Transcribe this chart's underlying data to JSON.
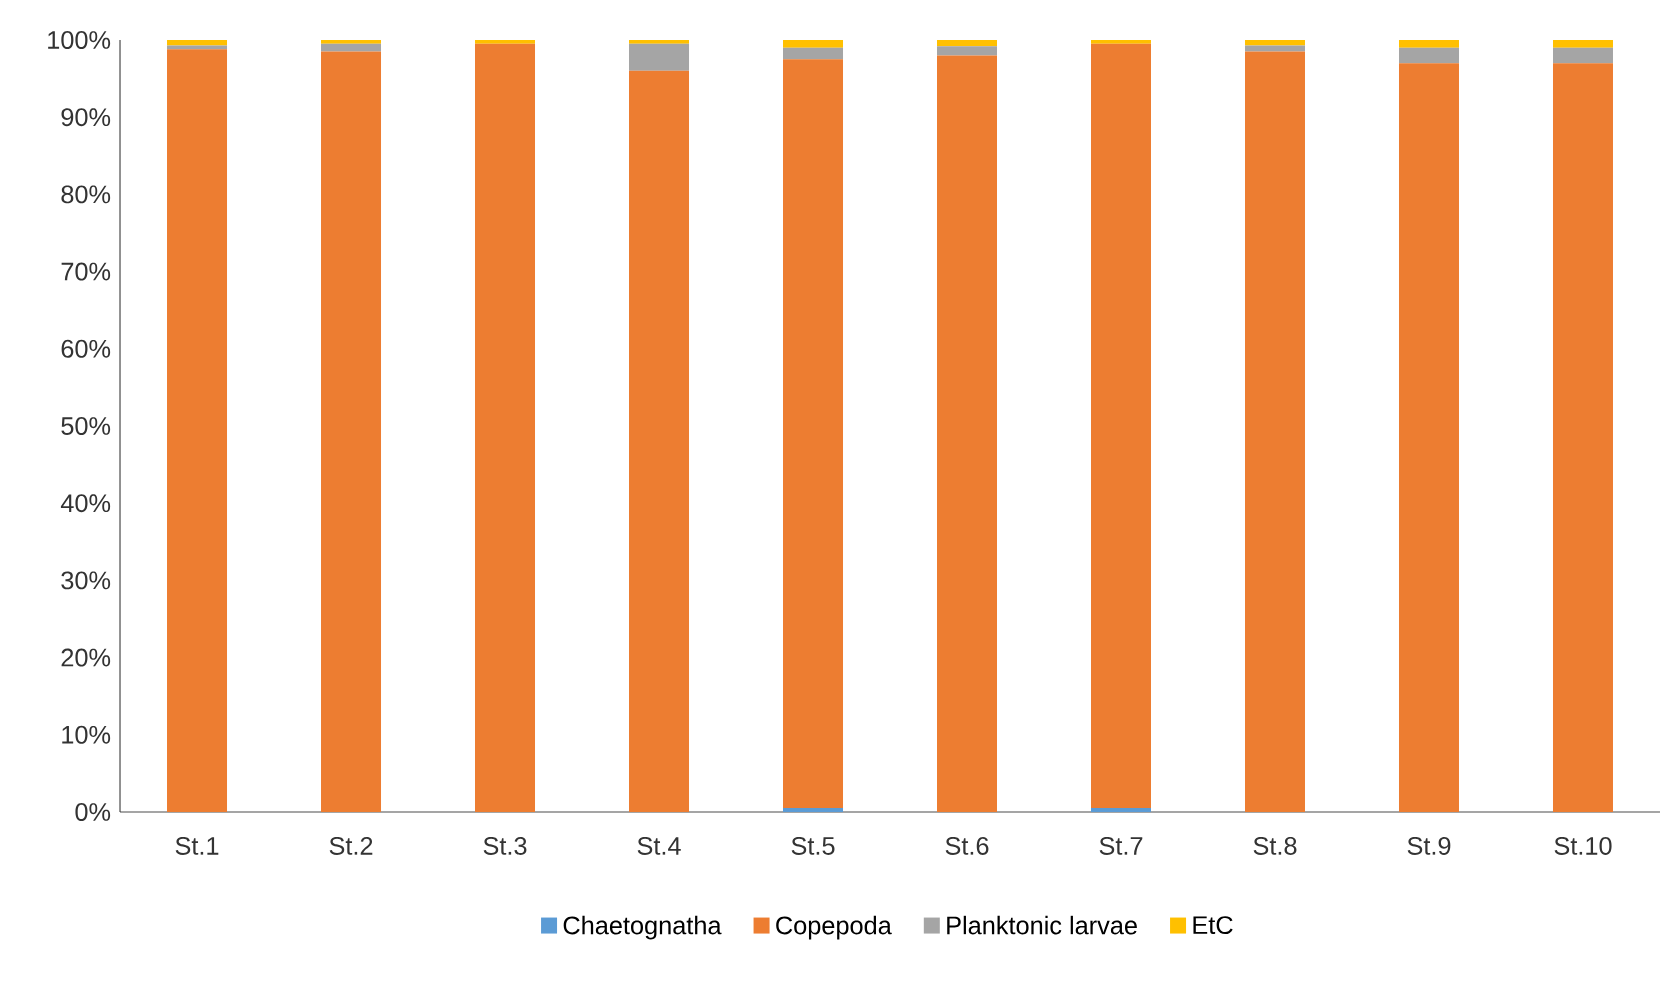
{
  "chart_data": {
    "type": "bar",
    "stacked": true,
    "categories": [
      "St.1",
      "St.2",
      "St.3",
      "St.4",
      "St.5",
      "St.6",
      "St.7",
      "St.8",
      "St.9",
      "St.10"
    ],
    "series": [
      {
        "name": "Chaetognatha",
        "color": "#5b9bd5",
        "values": [
          0,
          0,
          0,
          0,
          0.5,
          0,
          0.5,
          0,
          0,
          0
        ]
      },
      {
        "name": "Copepoda",
        "color": "#ed7d31",
        "values": [
          98.8,
          98.5,
          99.5,
          96,
          97,
          98,
          99,
          98.5,
          97,
          97
        ]
      },
      {
        "name": "Planktonic larvae",
        "color": "#a5a5a5",
        "values": [
          0.5,
          1,
          0,
          3.5,
          1.5,
          1.2,
          0,
          0.8,
          2,
          2
        ]
      },
      {
        "name": "EtC",
        "color": "#ffc000",
        "values": [
          0.7,
          0.5,
          0.5,
          0.5,
          1,
          0.8,
          0.5,
          0.7,
          1,
          1
        ]
      }
    ],
    "ylim": [
      0,
      100
    ],
    "yticks": [
      {
        "value": 0,
        "label": "0%"
      },
      {
        "value": 10,
        "label": "10%"
      },
      {
        "value": 20,
        "label": "20%"
      },
      {
        "value": 30,
        "label": "30%"
      },
      {
        "value": 40,
        "label": "40%"
      },
      {
        "value": 50,
        "label": "50%"
      },
      {
        "value": 60,
        "label": "60%"
      },
      {
        "value": 70,
        "label": "70%"
      },
      {
        "value": 80,
        "label": "80%"
      },
      {
        "value": 90,
        "label": "90%"
      },
      {
        "value": 100,
        "label": "100%"
      }
    ],
    "legend": "bottom",
    "grid": false
  }
}
